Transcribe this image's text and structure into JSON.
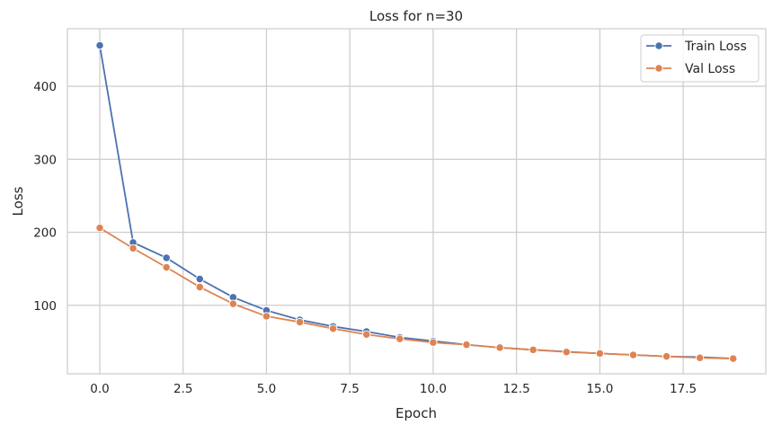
{
  "chart_data": {
    "type": "line",
    "title": "Loss for n=30",
    "xlabel": "Epoch",
    "ylabel": "Loss",
    "xlim": [
      -0.95,
      19.95
    ],
    "ylim": [
      5,
      478
    ],
    "x_ticks": [
      "0.0",
      "2.5",
      "5.0",
      "7.5",
      "10.0",
      "12.5",
      "15.0",
      "17.5"
    ],
    "x_tick_values": [
      0,
      2.5,
      5,
      7.5,
      10,
      12.5,
      15,
      17.5
    ],
    "y_ticks": [
      "100",
      "200",
      "300",
      "400"
    ],
    "y_tick_values": [
      100,
      200,
      300,
      400
    ],
    "grid": true,
    "legend_placement": "top-right",
    "x": [
      0,
      1,
      2,
      3,
      4,
      5,
      6,
      7,
      8,
      9,
      10,
      11,
      12,
      13,
      14,
      15,
      16,
      17,
      18,
      19
    ],
    "series": [
      {
        "name": "Train Loss",
        "color": "#4c72b0",
        "values": [
          456,
          186,
          165,
          136,
          111,
          93,
          80,
          71,
          64,
          56,
          51,
          46,
          42,
          39,
          36.5,
          34,
          32,
          30,
          29,
          27
        ]
      },
      {
        "name": "Val Loss",
        "color": "#dd8452",
        "values": [
          206,
          178,
          152,
          125,
          102,
          85,
          77,
          68,
          60,
          54,
          49,
          46,
          42,
          39,
          36,
          34,
          32,
          30,
          28,
          27
        ]
      }
    ]
  }
}
